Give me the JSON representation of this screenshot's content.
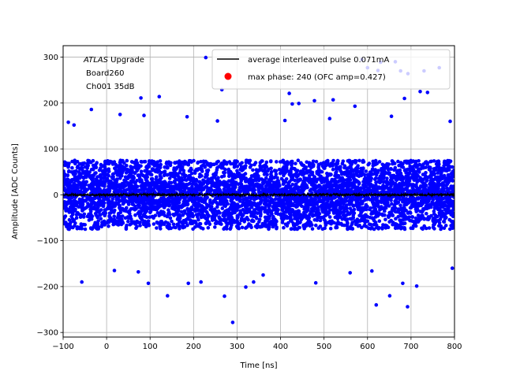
{
  "chart_data": {
    "type": "scatter",
    "xlabel": "Time [ns]",
    "ylabel": "Amplitude [ADC Counts]",
    "xlim": [
      -100,
      800
    ],
    "ylim": [
      -310,
      325
    ],
    "xticks": [
      -100,
      0,
      100,
      200,
      300,
      400,
      500,
      600,
      700,
      800
    ],
    "yticks": [
      -300,
      -200,
      -100,
      0,
      100,
      200,
      300
    ],
    "xtick_labels": [
      "−100",
      "0",
      "100",
      "200",
      "300",
      "400",
      "500",
      "600",
      "700",
      "800"
    ],
    "ytick_labels": [
      "−300",
      "−200",
      "−100",
      "0",
      "100",
      "200",
      "300"
    ],
    "grid": true,
    "legend_position": "top-right",
    "annotation": {
      "italic_part": "ATLAS",
      "line1_rest": " Upgrade",
      "line2": "Board260",
      "line3": "Ch001 35dB"
    },
    "series": [
      {
        "name": "average interleaved pulse 0.071mA",
        "kind": "line",
        "color": "#000000",
        "approx_level": 0,
        "approx_spread": 6
      },
      {
        "name": "max phase: 240 (OFC amp=0.427)",
        "kind": "marker",
        "color": "#ff0000"
      },
      {
        "name": "",
        "kind": "scatter",
        "color": "#0000ff",
        "dense_band": [
          -75,
          75
        ],
        "outliers": [
          {
            "x": 228,
            "y": 299
          },
          {
            "x": 265,
            "y": 229
          },
          {
            "x": 290,
            "y": -278
          },
          {
            "x": -35,
            "y": 186
          },
          {
            "x": 121,
            "y": 214
          },
          {
            "x": 79,
            "y": 211
          },
          {
            "x": 420,
            "y": 221
          },
          {
            "x": 427,
            "y": 198
          },
          {
            "x": 442,
            "y": 199
          },
          {
            "x": 478,
            "y": 205
          },
          {
            "x": 521,
            "y": 207
          },
          {
            "x": 571,
            "y": 193
          },
          {
            "x": 685,
            "y": 210
          },
          {
            "x": 721,
            "y": 225
          },
          {
            "x": 738,
            "y": 223
          },
          {
            "x": 587,
            "y": 295
          },
          {
            "x": 600,
            "y": 277
          },
          {
            "x": 624,
            "y": 271
          },
          {
            "x": 630,
            "y": 289
          },
          {
            "x": 664,
            "y": 290
          },
          {
            "x": 676,
            "y": 270
          },
          {
            "x": 693,
            "y": 264
          },
          {
            "x": 730,
            "y": 270
          },
          {
            "x": 765,
            "y": 277
          },
          {
            "x": -88,
            "y": 158
          },
          {
            "x": -75,
            "y": 152
          },
          {
            "x": 31,
            "y": 175
          },
          {
            "x": 86,
            "y": 173
          },
          {
            "x": 185,
            "y": 170
          },
          {
            "x": 255,
            "y": 161
          },
          {
            "x": 410,
            "y": 162
          },
          {
            "x": 513,
            "y": 166
          },
          {
            "x": 655,
            "y": 171
          },
          {
            "x": 790,
            "y": 160
          },
          {
            "x": -57,
            "y": -190
          },
          {
            "x": 18,
            "y": -165
          },
          {
            "x": 96,
            "y": -193
          },
          {
            "x": 140,
            "y": -220
          },
          {
            "x": 188,
            "y": -193
          },
          {
            "x": 217,
            "y": -190
          },
          {
            "x": 271,
            "y": -221
          },
          {
            "x": 320,
            "y": -201
          },
          {
            "x": 338,
            "y": -190
          },
          {
            "x": 481,
            "y": -192
          },
          {
            "x": 620,
            "y": -240
          },
          {
            "x": 651,
            "y": -220
          },
          {
            "x": 681,
            "y": -193
          },
          {
            "x": 692,
            "y": -244
          },
          {
            "x": 713,
            "y": -199
          },
          {
            "x": 795,
            "y": -160
          },
          {
            "x": 73,
            "y": -168
          },
          {
            "x": 360,
            "y": -175
          },
          {
            "x": 560,
            "y": -170
          },
          {
            "x": 610,
            "y": -166
          }
        ]
      }
    ]
  }
}
